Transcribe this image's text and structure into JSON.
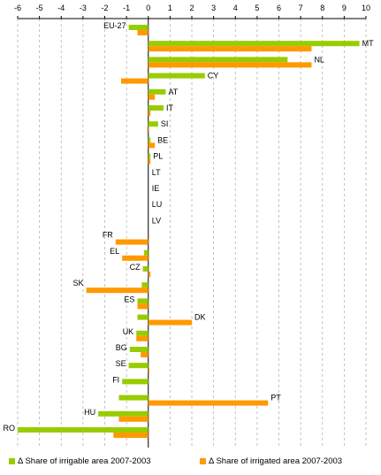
{
  "chart_data": {
    "type": "bar",
    "orientation": "horizontal",
    "xlim": [
      -6,
      10
    ],
    "ticks": [
      -6,
      -5,
      -4,
      -3,
      -2,
      -1,
      0,
      1,
      2,
      3,
      4,
      5,
      6,
      7,
      8,
      9,
      10
    ],
    "grid": "vertical dashed",
    "legend_position": "bottom",
    "categories": [
      "EU-27",
      "MT",
      "NL",
      "CY",
      "AT",
      "IT",
      "SI",
      "BE",
      "PL",
      "LT",
      "IE",
      "LU",
      "LV",
      "FR",
      "EL",
      "CZ",
      "SK",
      "ES",
      "DK",
      "UK",
      "BG",
      "SE",
      "FI",
      "PT",
      "HU",
      "RO"
    ],
    "series": [
      {
        "name": "Δ Share of irrigable area 2007-2003",
        "color": "#99cc00",
        "values": [
          -0.9,
          9.7,
          6.4,
          2.6,
          0.8,
          0.7,
          0.45,
          0.1,
          0.1,
          0.0,
          0.0,
          0.0,
          0.0,
          0.0,
          -0.2,
          -0.25,
          -0.3,
          -0.5,
          -0.5,
          -0.55,
          -0.85,
          -0.9,
          -1.2,
          -1.35,
          -2.3,
          -6.0
        ]
      },
      {
        "name": "Δ Share of irrigated area 2007-2003",
        "color": "#ff9900",
        "values": [
          -0.5,
          7.5,
          7.5,
          -1.25,
          0.3,
          0.1,
          -0.05,
          0.3,
          0.1,
          0.0,
          0.0,
          0.0,
          0.0,
          -1.5,
          -1.2,
          0.1,
          -2.85,
          -0.5,
          2.0,
          -0.55,
          -0.35,
          0.05,
          0.0,
          5.5,
          -1.35,
          -1.6
        ]
      }
    ]
  }
}
